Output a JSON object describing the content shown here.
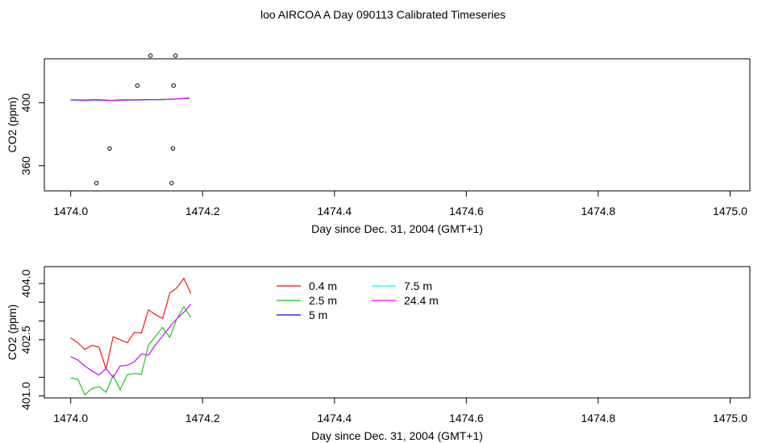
{
  "title": "loo AIRCOA A  Day 090113  Calibrated Timeseries",
  "chart_data": [
    {
      "type": "scatter",
      "xlabel": "Day since Dec. 31, 2004 (GMT+1)",
      "ylabel": "CO2 (ppm)",
      "xlim": [
        1473.96,
        1475.03
      ],
      "ylim": [
        344,
        428
      ],
      "xticks": [
        1474.0,
        1474.2,
        1474.4,
        1474.6,
        1474.8,
        1475.0
      ],
      "xtick_labels": [
        "1474.0",
        "1474.2",
        "1474.4",
        "1474.6",
        "1474.8",
        "1475.0"
      ],
      "yticks": [
        360,
        400
      ],
      "ytick_labels": [
        "360",
        "400"
      ],
      "grid": false,
      "colors": {
        "0.4 m": "#ff0000",
        "2.5 m": "#00cc00",
        "5 m": "#0000ff",
        "7.5 m": "#00ffff",
        "24.4 m": "#ff00ff"
      },
      "points": {
        "x": [
          1474.039,
          1474.059,
          1474.101,
          1474.121,
          1474.153,
          1474.155,
          1474.156,
          1474.159
        ],
        "y": [
          349,
          371,
          411,
          430,
          349,
          371,
          411,
          430
        ]
      },
      "series": [
        {
          "name": "0.4 m",
          "x": [
            1474.0,
            1474.02,
            1474.04,
            1474.06,
            1474.08,
            1474.1,
            1474.12,
            1474.14,
            1474.16,
            1474.18
          ],
          "y": [
            402.0,
            401.9,
            402.1,
            401.6,
            402.0,
            402.0,
            402.1,
            402.2,
            402.4,
            403.2
          ]
        },
        {
          "name": "2.5 m",
          "x": [
            1474.0,
            1474.02,
            1474.04,
            1474.06,
            1474.08,
            1474.1,
            1474.12,
            1474.14,
            1474.16,
            1474.18
          ],
          "y": [
            401.6,
            401.3,
            401.5,
            401.4,
            401.5,
            401.7,
            401.9,
            402.0,
            402.5,
            402.8
          ]
        },
        {
          "name": "5 m",
          "x": [
            1474.0,
            1474.02,
            1474.04,
            1474.06,
            1474.08,
            1474.1,
            1474.12,
            1474.14,
            1474.16,
            1474.18
          ],
          "y": [
            401.8,
            401.7,
            401.8,
            401.5,
            401.8,
            401.8,
            402.0,
            402.1,
            402.4,
            402.9
          ]
        },
        {
          "name": "7.5 m",
          "x": [
            1474.0,
            1474.02,
            1474.04,
            1474.06,
            1474.08,
            1474.1,
            1474.12,
            1474.14,
            1474.16,
            1474.18
          ],
          "y": [
            401.7,
            401.6,
            401.7,
            401.5,
            401.7,
            401.8,
            401.9,
            402.1,
            402.4,
            402.9
          ]
        },
        {
          "name": "24.4 m",
          "x": [
            1474.0,
            1474.02,
            1474.04,
            1474.06,
            1474.08,
            1474.1,
            1474.12,
            1474.14,
            1474.16,
            1474.18
          ],
          "y": [
            401.9,
            401.7,
            401.9,
            401.5,
            401.8,
            401.9,
            402.0,
            402.2,
            402.5,
            403.0
          ]
        }
      ]
    },
    {
      "type": "line",
      "xlabel": "Day since Dec. 31, 2004 (GMT+1)",
      "ylabel": "CO2 (ppm)",
      "xlim": [
        1473.96,
        1475.03
      ],
      "ylim": [
        400.95,
        404.45
      ],
      "xticks": [
        1474.0,
        1474.2,
        1474.4,
        1474.6,
        1474.8,
        1475.0
      ],
      "xtick_labels": [
        "1474.0",
        "1474.2",
        "1474.4",
        "1474.6",
        "1474.8",
        "1475.0"
      ],
      "yticks": [
        401.0,
        402.5,
        404.0
      ],
      "ytick_labels": [
        "401.0",
        "402.5",
        "404.0"
      ],
      "minor_yticks": [
        401.5,
        403.0,
        403.5
      ],
      "grid": false,
      "legend": {
        "placement": "top-center",
        "columns": 2
      },
      "series": [
        {
          "name": "0.4 m",
          "color": "#ff0000",
          "x": [
            1474.0,
            1474.0107,
            1474.0214,
            1474.0322,
            1474.0429,
            1474.0536,
            1474.0643,
            1474.075,
            1474.0858,
            1474.0965,
            1474.1072,
            1474.1179,
            1474.1286,
            1474.1394,
            1474.1501,
            1474.1608,
            1474.1715,
            1474.1822
          ],
          "y": [
            402.55,
            402.42,
            402.24,
            402.35,
            402.3,
            401.72,
            402.58,
            402.5,
            402.42,
            402.7,
            402.68,
            403.3,
            403.17,
            403.07,
            403.74,
            403.88,
            404.14,
            403.73
          ]
        },
        {
          "name": "2.5 m",
          "color": "#00cc00",
          "x": [
            1474.0,
            1474.0107,
            1474.0214,
            1474.0322,
            1474.0429,
            1474.0536,
            1474.0643,
            1474.075,
            1474.0858,
            1474.0965,
            1474.1072,
            1474.1179,
            1474.1286,
            1474.1394,
            1474.1501,
            1474.1608,
            1474.1715,
            1474.1822
          ],
          "y": [
            401.48,
            401.45,
            401.03,
            401.2,
            401.25,
            401.1,
            401.55,
            401.17,
            401.57,
            401.6,
            401.58,
            402.36,
            402.59,
            402.83,
            402.56,
            403.05,
            403.38,
            403.1
          ]
        },
        {
          "name": "5 m",
          "color": "#0000ff",
          "x": [
            1474.0,
            1474.0107,
            1474.0214,
            1474.0322,
            1474.0429,
            1474.0536,
            1474.0643,
            1474.075,
            1474.0858,
            1474.0965,
            1474.1072,
            1474.1179,
            1474.1286,
            1474.1394,
            1474.1501,
            1474.1608,
            1474.1715,
            1474.1822
          ],
          "y": [
            402.05,
            401.96,
            401.8,
            401.67,
            401.56,
            401.73,
            401.5,
            401.8,
            401.82,
            401.91,
            402.12,
            402.09,
            402.37,
            402.6,
            402.84,
            403.06,
            403.23,
            403.45
          ]
        },
        {
          "name": "7.5 m",
          "color": "#00ffff",
          "x": [
            1474.0,
            1474.0107,
            1474.0214,
            1474.0322,
            1474.0429,
            1474.0536,
            1474.0643,
            1474.075,
            1474.0858,
            1474.0965,
            1474.1072,
            1474.1179,
            1474.1286,
            1474.1394,
            1474.1501,
            1474.1608,
            1474.1715,
            1474.1822
          ],
          "y": [
            402.05,
            401.96,
            401.8,
            401.67,
            401.56,
            401.73,
            401.5,
            401.8,
            401.82,
            401.91,
            402.12,
            402.09,
            402.37,
            402.6,
            402.84,
            403.06,
            403.23,
            403.45
          ]
        },
        {
          "name": "24.4 m",
          "color": "#ff00ff",
          "x": [
            1474.0,
            1474.0107,
            1474.0214,
            1474.0322,
            1474.0429,
            1474.0536,
            1474.0643,
            1474.075,
            1474.0858,
            1474.0965,
            1474.1072,
            1474.1179,
            1474.1286,
            1474.1394,
            1474.1501,
            1474.1608,
            1474.1715,
            1474.1822
          ],
          "y": [
            402.05,
            401.96,
            401.8,
            401.67,
            401.56,
            401.73,
            401.5,
            401.8,
            401.82,
            401.91,
            402.12,
            402.09,
            402.37,
            402.6,
            402.84,
            403.06,
            403.23,
            403.45
          ]
        }
      ]
    }
  ]
}
